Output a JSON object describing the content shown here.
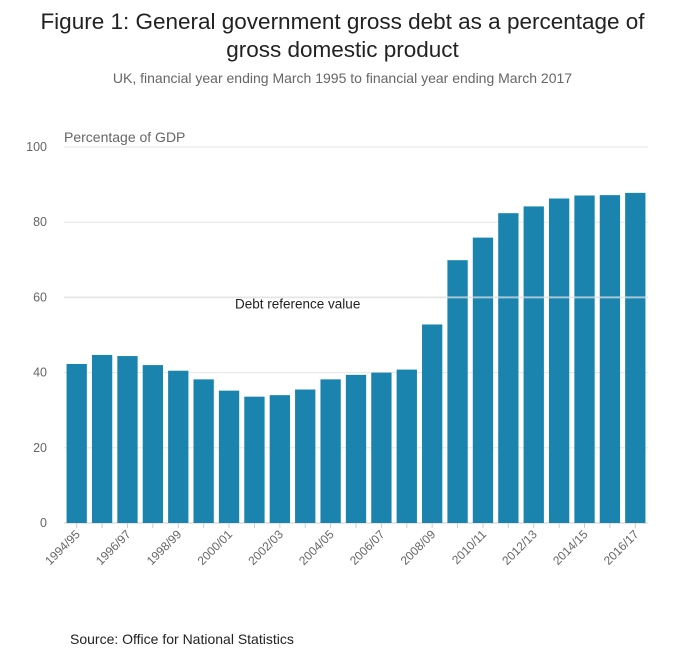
{
  "header": {
    "title_line1": "Figure 1: General government gross debt as a percentage of",
    "title_line2": "gross domestic product",
    "subtitle": "UK, financial year ending March 1995 to financial year ending March 2017"
  },
  "footer": {
    "source": "Source: Office for National Statistics"
  },
  "colors": {
    "bar": "#1a84ae",
    "grid": "#e6e6e6",
    "axis": "#cccccc"
  },
  "chart_data": {
    "type": "bar",
    "ylabel": "Percentage of GDP",
    "ylim": [
      0,
      100
    ],
    "yticks": [
      0,
      20,
      40,
      60,
      80,
      100
    ],
    "grid": true,
    "categories": [
      "1994/95",
      "1995/96",
      "1996/97",
      "1997/98",
      "1998/99",
      "1999/00",
      "2000/01",
      "2001/02",
      "2002/03",
      "2003/04",
      "2004/05",
      "2005/06",
      "2006/07",
      "2007/08",
      "2008/09",
      "2009/10",
      "2010/11",
      "2011/12",
      "2012/13",
      "2013/14",
      "2014/15",
      "2015/16",
      "2016/17"
    ],
    "xtick_labels": [
      "1994/95",
      "",
      "1996/97",
      "",
      "1998/99",
      "",
      "2000/01",
      "",
      "2002/03",
      "",
      "2004/05",
      "",
      "2006/07",
      "",
      "2008/09",
      "",
      "2010/11",
      "",
      "2012/13",
      "",
      "2014/15",
      "",
      "2016/17"
    ],
    "values": [
      42.3,
      44.7,
      44.4,
      42.0,
      40.5,
      38.2,
      35.2,
      33.6,
      34.0,
      35.5,
      38.2,
      39.4,
      40.0,
      40.8,
      52.8,
      69.9,
      75.9,
      82.4,
      84.2,
      86.3,
      87.1,
      87.2,
      87.8
    ],
    "reference_line": {
      "label": "Debt reference value",
      "value": 60
    }
  }
}
